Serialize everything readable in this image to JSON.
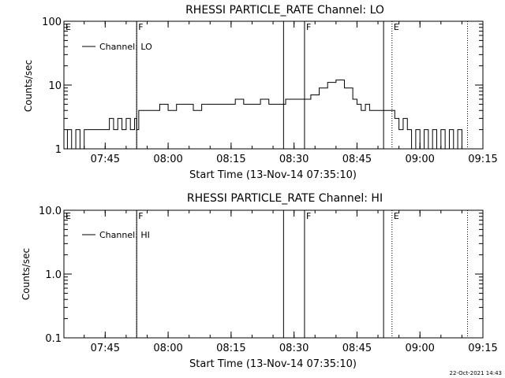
{
  "footer": {
    "timestamp": "22-Oct-2021 14:43"
  },
  "chart_data": [
    {
      "type": "line",
      "title": "RHESSI PARTICLE_RATE Channel: LO",
      "xlabel": "Start Time (13-Nov-14 07:35:10)",
      "ylabel": "Counts/sec",
      "yscale": "log",
      "xlim": [
        "07:35:10",
        "09:15:00"
      ],
      "ylim": [
        1,
        100
      ],
      "xticks": [
        "07:45",
        "08:00",
        "08:15",
        "08:30",
        "08:45",
        "09:00",
        "09:15"
      ],
      "yticks": [
        "1",
        "10",
        "100"
      ],
      "legend": {
        "position": "top-left",
        "entries": [
          "Channel: LO"
        ]
      },
      "markers": [
        {
          "time": "07:35:10",
          "label": "E",
          "style": "solid"
        },
        {
          "time": "07:52:30",
          "label": "F",
          "style": "dotted"
        },
        {
          "time": "07:52:30",
          "label": "",
          "style": "solid"
        },
        {
          "time": "08:27:30",
          "label": "",
          "style": "solid"
        },
        {
          "time": "08:32:30",
          "label": "F",
          "style": "solid"
        },
        {
          "time": "08:51:20",
          "label": "",
          "style": "solid"
        },
        {
          "time": "08:53:20",
          "label": "E",
          "style": "dotted"
        },
        {
          "time": "09:11:20",
          "label": "",
          "style": "dotted"
        }
      ],
      "series": [
        {
          "name": "Channel: LO",
          "x": [
            "07:35:10",
            "07:36:00",
            "07:37:00",
            "07:38:00",
            "07:39:00",
            "07:40:00",
            "07:41:00",
            "07:42:00",
            "07:43:00",
            "07:44:00",
            "07:45:00",
            "07:46:00",
            "07:47:00",
            "07:48:00",
            "07:49:00",
            "07:50:00",
            "07:51:00",
            "07:52:00",
            "07:52:30",
            "07:53:00",
            "07:54:00",
            "07:56:00",
            "07:58:00",
            "08:00:00",
            "08:02:00",
            "08:04:00",
            "08:06:00",
            "08:08:00",
            "08:10:00",
            "08:12:00",
            "08:14:00",
            "08:16:00",
            "08:18:00",
            "08:20:00",
            "08:22:00",
            "08:24:00",
            "08:26:00",
            "08:28:00",
            "08:30:00",
            "08:32:00",
            "08:34:00",
            "08:36:00",
            "08:38:00",
            "08:40:00",
            "08:42:00",
            "08:44:00",
            "08:45:00",
            "08:46:00",
            "08:47:00",
            "08:48:00",
            "08:50:00",
            "08:52:00",
            "08:53:00",
            "08:54:00",
            "08:55:00",
            "08:56:00",
            "08:57:00",
            "08:58:00",
            "08:59:00",
            "09:00:00",
            "09:01:00",
            "09:02:00",
            "09:03:00",
            "09:04:00",
            "09:05:00",
            "09:06:00",
            "09:07:00",
            "09:08:00",
            "09:09:00",
            "09:10:00",
            "09:11:00"
          ],
          "y": [
            1,
            2,
            1,
            2,
            1,
            2,
            2,
            2,
            2,
            2,
            2,
            3,
            2,
            3,
            2,
            3,
            2,
            3,
            2,
            4,
            4,
            4,
            5,
            4,
            5,
            5,
            4,
            5,
            5,
            5,
            5,
            6,
            5,
            5,
            6,
            5,
            5,
            6,
            6,
            6,
            7,
            9,
            11,
            12,
            9,
            6,
            5,
            4,
            5,
            4,
            4,
            4,
            4,
            3,
            2,
            3,
            2,
            1,
            2,
            1,
            2,
            1,
            2,
            1,
            2,
            1,
            2,
            1,
            2,
            1,
            1
          ]
        }
      ]
    },
    {
      "type": "line",
      "title": "RHESSI PARTICLE_RATE Channel: HI",
      "xlabel": "Start Time (13-Nov-14 07:35:10)",
      "ylabel": "Counts/sec",
      "yscale": "log",
      "xlim": [
        "07:35:10",
        "09:15:00"
      ],
      "ylim": [
        0.1,
        10.0
      ],
      "xticks": [
        "07:45",
        "08:00",
        "08:15",
        "08:30",
        "08:45",
        "09:00",
        "09:15"
      ],
      "yticks": [
        "0.1",
        "1.0",
        "10.0"
      ],
      "legend": {
        "position": "top-left",
        "entries": [
          "Channel: HI"
        ]
      },
      "markers": [
        {
          "time": "07:35:10",
          "label": "E",
          "style": "solid"
        },
        {
          "time": "07:52:30",
          "label": "F",
          "style": "dotted"
        },
        {
          "time": "07:52:30",
          "label": "",
          "style": "solid"
        },
        {
          "time": "08:27:30",
          "label": "",
          "style": "solid"
        },
        {
          "time": "08:32:30",
          "label": "F",
          "style": "solid"
        },
        {
          "time": "08:51:20",
          "label": "",
          "style": "solid"
        },
        {
          "time": "08:53:20",
          "label": "E",
          "style": "dotted"
        },
        {
          "time": "09:11:20",
          "label": "",
          "style": "dotted"
        }
      ],
      "series": [
        {
          "name": "Channel: HI",
          "x": [],
          "y": []
        }
      ]
    }
  ]
}
